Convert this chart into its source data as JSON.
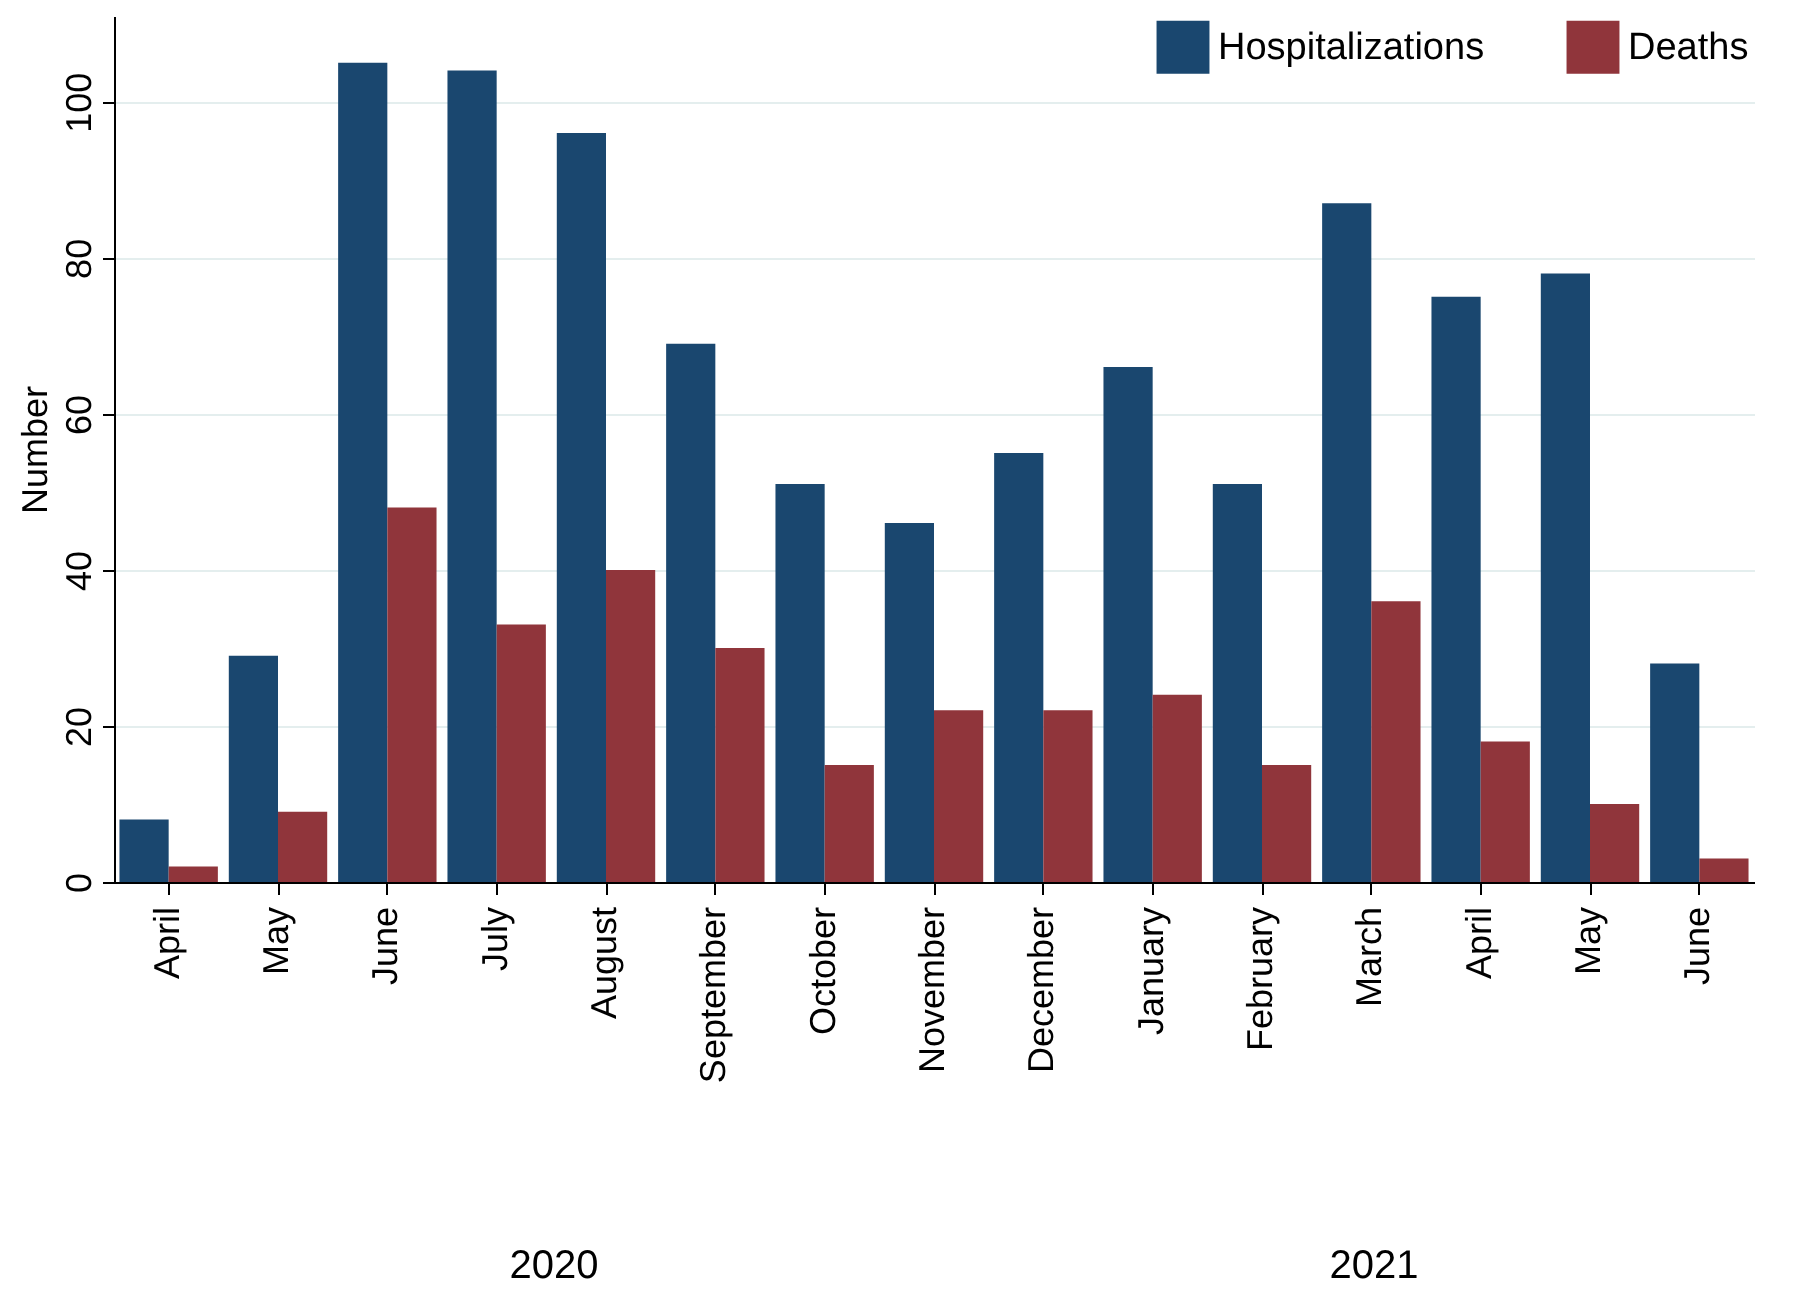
{
  "chart_data": {
    "type": "bar",
    "ylabel": "Number",
    "categories": [
      "April",
      "May",
      "June",
      "July",
      "August",
      "September",
      "October",
      "November",
      "December",
      "January",
      "February",
      "March",
      "April",
      "May",
      "June"
    ],
    "series": [
      {
        "name": "Hospitalizations",
        "color": "#1a476f",
        "values": [
          8,
          29,
          105,
          104,
          96,
          69,
          51,
          46,
          55,
          66,
          51,
          87,
          75,
          78,
          28
        ]
      },
      {
        "name": "Deaths",
        "color": "#90353b",
        "values": [
          2,
          9,
          48,
          33,
          40,
          30,
          15,
          22,
          22,
          24,
          15,
          36,
          18,
          10,
          3
        ]
      }
    ],
    "ylim": [
      0,
      111
    ],
    "yticks": [
      0,
      20,
      40,
      60,
      80,
      100
    ],
    "grid": "y",
    "legend": "top right",
    "annotations": [
      "2020",
      "2021"
    ]
  }
}
